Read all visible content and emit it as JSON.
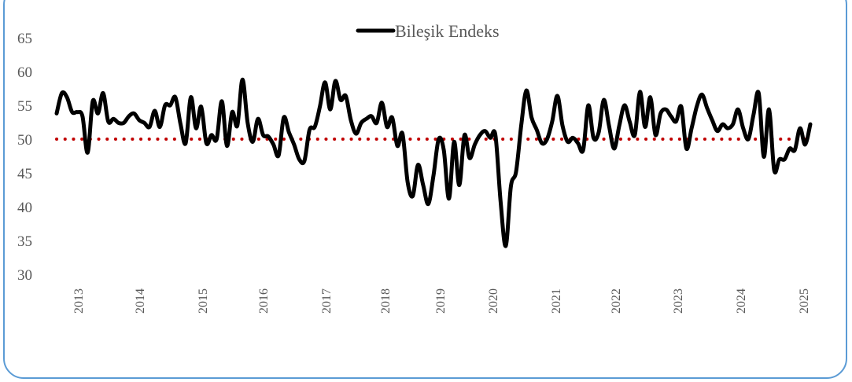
{
  "chart_data": {
    "type": "line",
    "title": "",
    "xlabel": "",
    "ylabel": "",
    "ylim": [
      30,
      65
    ],
    "yticks": [
      30,
      35,
      40,
      45,
      50,
      55,
      60,
      65
    ],
    "xtick_labels": [
      "2013",
      "2014",
      "2015",
      "2016",
      "2017",
      "2018",
      "2019",
      "2020",
      "2021",
      "2022",
      "2023",
      "2024",
      "2025"
    ],
    "grid": false,
    "legend_position": "top-center",
    "reference_line": {
      "value": 50,
      "style": "dotted",
      "color": "#c00000"
    },
    "series": [
      {
        "name": "Bileşik Endeks",
        "color": "#000000",
        "start": "2013-01",
        "frequency": "monthly",
        "values": [
          53.8,
          56.8,
          56.2,
          54.0,
          54.0,
          53.4,
          48.0,
          55.6,
          53.8,
          56.8,
          52.6,
          53.0,
          52.4,
          52.4,
          53.4,
          53.8,
          52.8,
          52.4,
          51.8,
          54.2,
          51.8,
          55.0,
          55.0,
          56.2,
          52.2,
          49.4,
          56.2,
          51.6,
          54.8,
          49.4,
          50.6,
          50.0,
          55.6,
          49.0,
          54.0,
          52.0,
          58.8,
          52.4,
          49.6,
          53.0,
          50.6,
          50.4,
          49.2,
          47.6,
          53.2,
          51.0,
          49.2,
          47.0,
          46.8,
          51.4,
          51.8,
          54.8,
          58.4,
          54.4,
          58.6,
          55.8,
          56.4,
          52.8,
          50.8,
          52.4,
          53.0,
          53.4,
          52.4,
          55.4,
          51.8,
          53.2,
          49.0,
          50.8,
          43.6,
          41.6,
          46.2,
          43.2,
          40.4,
          44.6,
          50.0,
          48.4,
          41.2,
          49.6,
          43.2,
          50.6,
          47.2,
          49.2,
          50.6,
          51.2,
          50.2,
          50.6,
          40.8,
          34.2,
          43.0,
          45.2,
          52.0,
          57.2,
          53.2,
          51.4,
          49.4,
          50.0,
          52.6,
          56.4,
          52.0,
          49.6,
          50.2,
          49.4,
          48.4,
          55.0,
          50.2,
          51.0,
          55.8,
          52.0,
          48.6,
          52.0,
          55.0,
          52.6,
          50.6,
          57.0,
          51.8,
          56.2,
          50.6,
          53.8,
          54.4,
          53.4,
          52.6,
          54.8,
          48.6,
          51.6,
          54.8,
          56.6,
          54.6,
          52.8,
          51.2,
          52.2,
          51.6,
          52.2,
          54.4,
          51.6,
          50.0,
          53.6,
          56.8,
          47.4,
          54.4,
          45.4,
          47.0,
          47.0,
          48.6,
          48.4,
          51.6,
          49.2,
          52.2
        ]
      }
    ]
  },
  "legend": {
    "label": "Bileşik Endeks"
  },
  "y_axis": {
    "labels": [
      "65",
      "60",
      "55",
      "50",
      "45",
      "40",
      "35",
      "30"
    ]
  },
  "x_axis": {
    "labels": [
      "2013",
      "2014",
      "2015",
      "2016",
      "2017",
      "2018",
      "2019",
      "2020",
      "2021",
      "2022",
      "2023",
      "2024",
      "2025"
    ]
  },
  "colors": {
    "line": "#000000",
    "reference": "#c00000",
    "frame": "#5b9bd5",
    "axis_text": "#595959"
  }
}
